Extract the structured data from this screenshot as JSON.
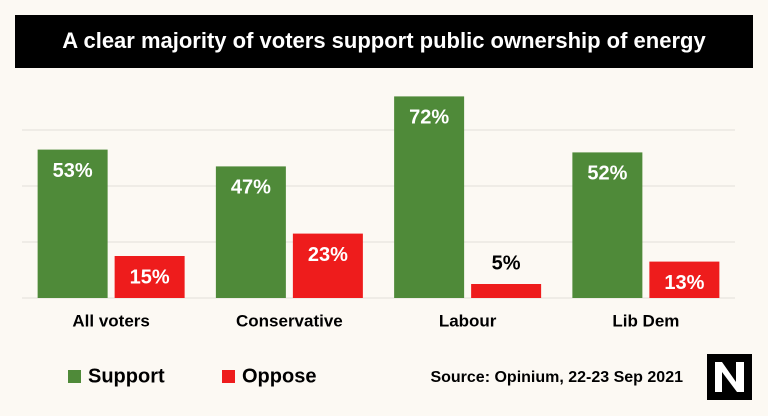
{
  "chart_data": {
    "type": "bar",
    "title": "A clear majority of voters support public ownership of energy",
    "categories": [
      "All voters",
      "Conservative",
      "Labour",
      "Lib Dem"
    ],
    "series": [
      {
        "name": "Support",
        "color": "#4f8a39",
        "values": [
          53,
          47,
          72,
          52
        ],
        "value_labels": [
          "53%",
          "47%",
          "72%",
          "52%"
        ]
      },
      {
        "name": "Oppose",
        "color": "#ee1c1c",
        "values": [
          15,
          23,
          5,
          13
        ],
        "value_labels": [
          "15%",
          "23%",
          "5%",
          "13%"
        ]
      }
    ],
    "ylim": [
      0,
      75
    ],
    "yticks": [
      0,
      20,
      40,
      60
    ],
    "grid": true,
    "source": "Source: Opinium, 22-23 Sep 2021"
  }
}
